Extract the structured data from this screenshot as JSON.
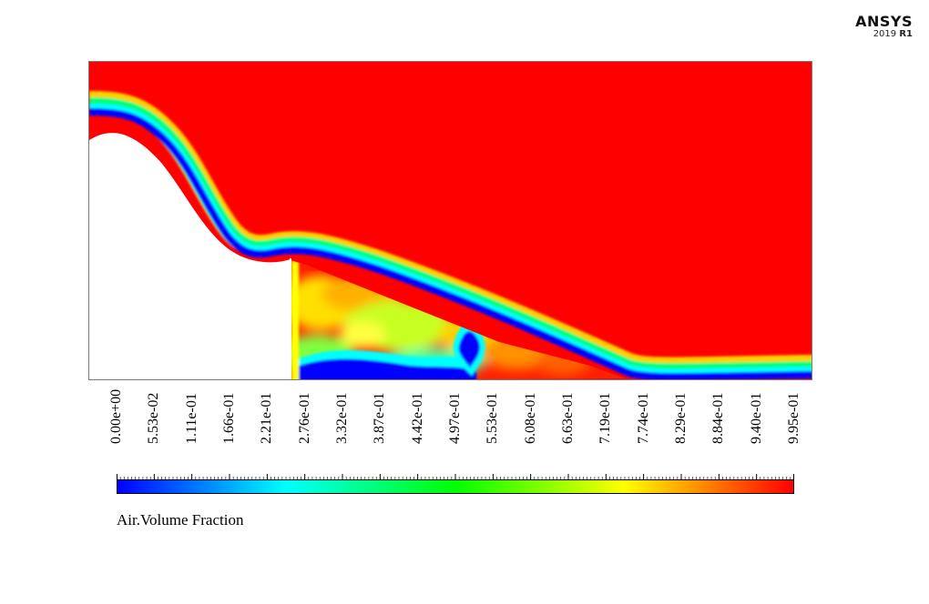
{
  "logo": {
    "name": "ANSYS",
    "version_year": "2019",
    "version_release": "R1"
  },
  "chart_data": {
    "type": "heatmap",
    "title": "",
    "colorbar": {
      "label": "Air.Volume Fraction",
      "min": 0,
      "max": 0.995,
      "colormap": [
        "#0000ff",
        "#00ffff",
        "#00ff00",
        "#ffff00",
        "#ff0000"
      ],
      "tick_labels": [
        "0.00e+00",
        "5.53e-02",
        "1.11e-01",
        "1.66e-01",
        "2.21e-01",
        "2.76e-01",
        "3.32e-01",
        "3.87e-01",
        "4.42e-01",
        "4.97e-01",
        "5.53e-01",
        "6.08e-01",
        "6.63e-01",
        "7.19e-01",
        "7.74e-01",
        "8.29e-01",
        "8.84e-01",
        "9.40e-01",
        "9.95e-01"
      ]
    },
    "colors": {
      "air": "#ff0000",
      "water": "#0000ff",
      "outside_domain": "#ffffff"
    }
  }
}
